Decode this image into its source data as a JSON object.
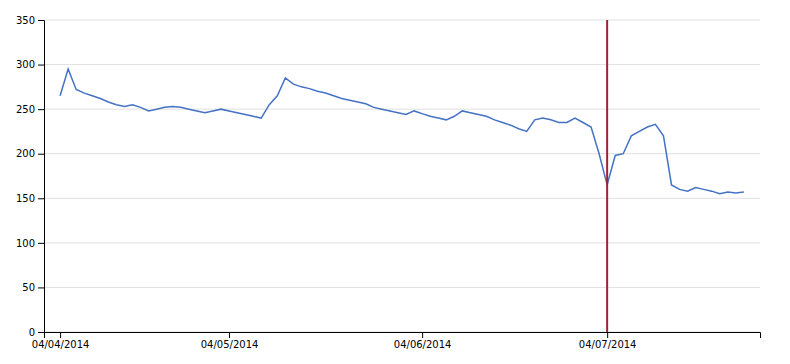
{
  "chart_data": {
    "type": "line",
    "categories": [
      "04/04/2014",
      null,
      null,
      null,
      null,
      null,
      null,
      null,
      null,
      null,
      null,
      null,
      null,
      null,
      null,
      null,
      null,
      null,
      null,
      null,
      null,
      "04/05/2014",
      null,
      null,
      null,
      null,
      null,
      null,
      null,
      null,
      null,
      null,
      null,
      null,
      null,
      null,
      null,
      null,
      null,
      null,
      null,
      null,
      null,
      null,
      null,
      "04/06/2014",
      null,
      null,
      null,
      null,
      null,
      null,
      null,
      null,
      null,
      null,
      null,
      null,
      null,
      null,
      null,
      null,
      null,
      null,
      null,
      null,
      null,
      null,
      "04/07/2014",
      null,
      null,
      null,
      null,
      null,
      null,
      null,
      null,
      null,
      null,
      null,
      null,
      null,
      null,
      null,
      null,
      null
    ],
    "values": [
      265,
      295,
      272,
      268,
      265,
      262,
      258,
      255,
      253,
      255,
      252,
      248,
      250,
      252,
      253,
      252,
      250,
      248,
      246,
      248,
      250,
      248,
      246,
      244,
      242,
      240,
      255,
      265,
      285,
      278,
      275,
      273,
      270,
      268,
      265,
      262,
      260,
      258,
      256,
      252,
      250,
      248,
      246,
      244,
      248,
      245,
      242,
      240,
      238,
      242,
      248,
      246,
      244,
      242,
      238,
      235,
      232,
      228,
      225,
      238,
      240,
      238,
      235,
      235,
      240,
      235,
      230,
      200,
      165,
      198,
      200,
      220,
      225,
      230,
      233,
      220,
      165,
      160,
      158,
      162,
      160,
      158,
      155,
      157,
      156,
      157
    ],
    "color": "#4472C4",
    "vline": {
      "x": 68,
      "color": "#9B2335"
    },
    "ylim": [
      0,
      350
    ],
    "yticks": [
      0,
      50,
      100,
      150,
      200,
      250,
      300,
      350
    ],
    "grid": true
  }
}
